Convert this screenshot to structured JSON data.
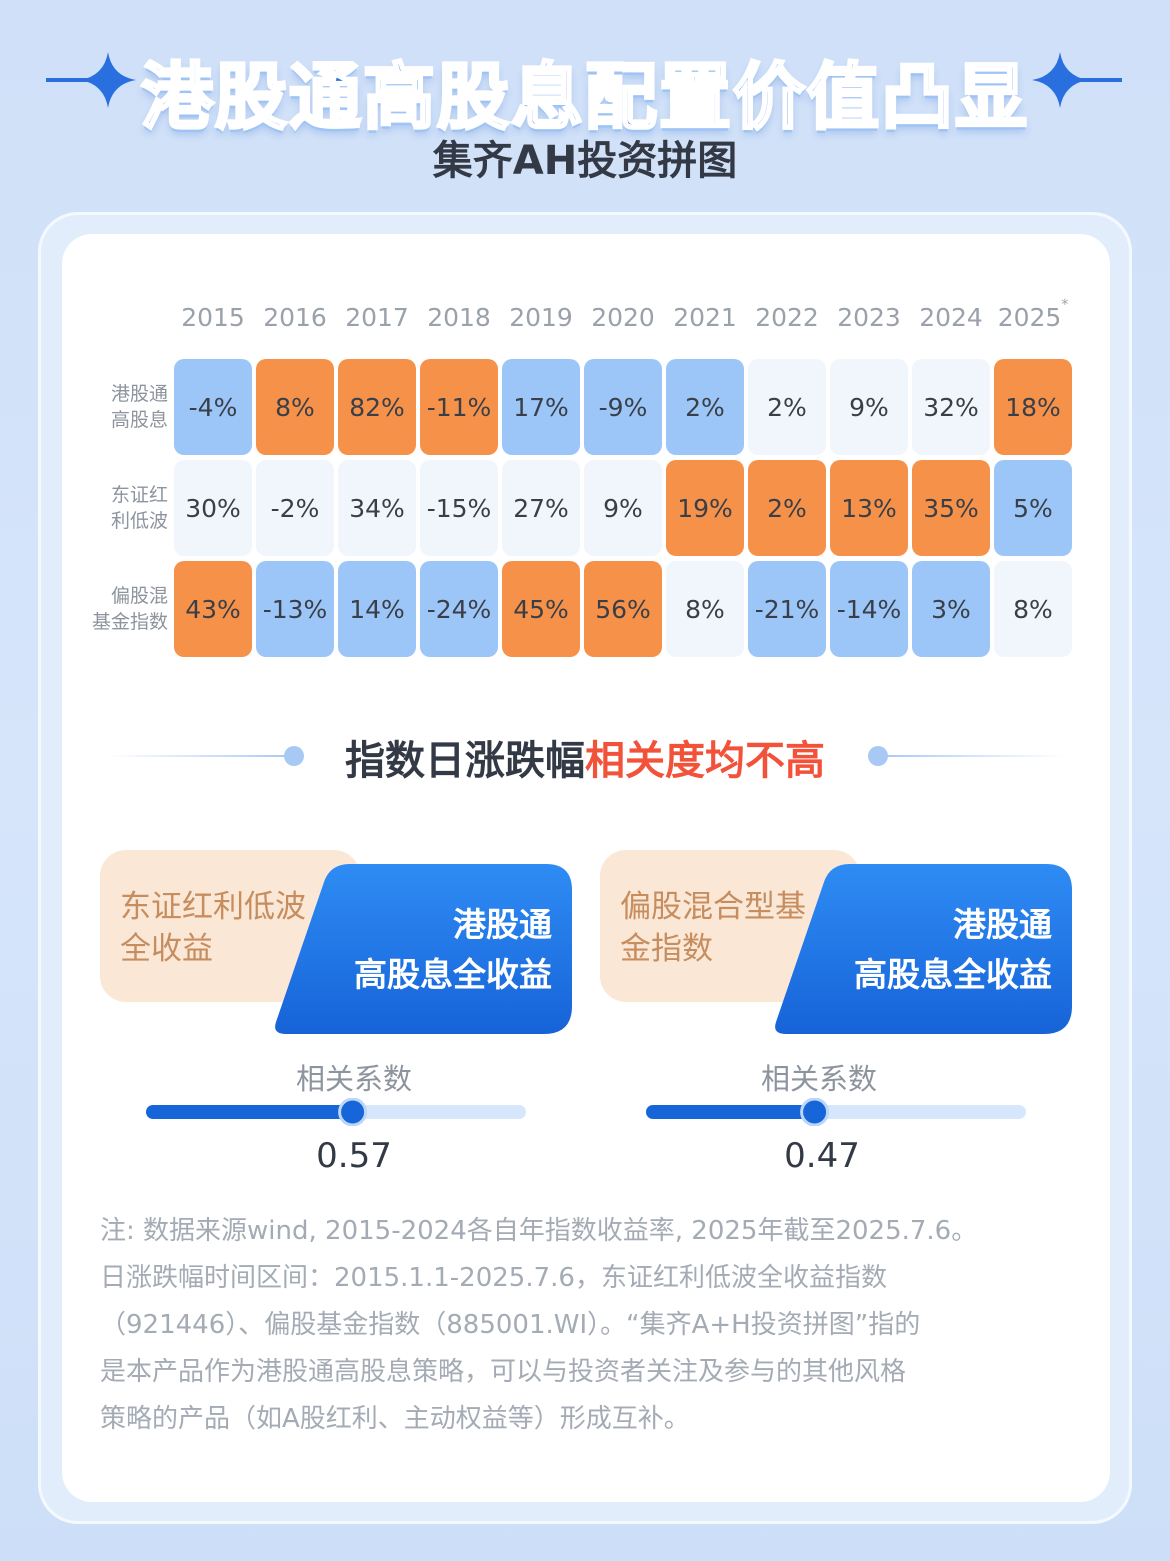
{
  "header": {
    "title": "港股通高股息配置价值凸显",
    "subtitle": "集齐AH投资拼图"
  },
  "chart_data": {
    "type": "table",
    "years": [
      "2015",
      "2016",
      "2017",
      "2018",
      "2019",
      "2020",
      "2021",
      "2022",
      "2023",
      "2024",
      "2025"
    ],
    "year_mark": "*",
    "rows": [
      {
        "label_lines": [
          "港股通",
          "高股息"
        ],
        "values": [
          "-4%",
          "8%",
          "82%",
          "-11%",
          "17%",
          "-9%",
          "2%",
          "2%",
          "9%",
          "32%",
          "18%"
        ],
        "highlight": [
          "blue",
          "orange",
          "orange",
          "orange",
          "blue",
          "blue",
          "blue",
          "plain",
          "plain",
          "plain",
          "orange"
        ]
      },
      {
        "label_lines": [
          "东证红",
          "利低波"
        ],
        "values": [
          "30%",
          "-2%",
          "34%",
          "-15%",
          "27%",
          "9%",
          "19%",
          "2%",
          "13%",
          "35%",
          "5%"
        ],
        "highlight": [
          "plain",
          "plain",
          "plain",
          "plain",
          "plain",
          "plain",
          "orange",
          "orange",
          "orange",
          "orange",
          "blue"
        ]
      },
      {
        "label_lines": [
          "偏股混",
          "基金指数"
        ],
        "values": [
          "43%",
          "-13%",
          "14%",
          "-24%",
          "45%",
          "56%",
          "8%",
          "-21%",
          "-14%",
          "3%",
          "8%"
        ],
        "highlight": [
          "orange",
          "blue",
          "blue",
          "blue",
          "orange",
          "orange",
          "plain",
          "blue",
          "blue",
          "blue",
          "plain"
        ]
      }
    ],
    "colors": {
      "orange": "#f6914a",
      "blue": "#9cc6f8",
      "plain": "#f1f6fd"
    }
  },
  "section": {
    "heading_prefix": "指数日涨跌幅",
    "heading_highlight": "相关度均不高"
  },
  "comparisons": [
    {
      "left_label_lines": [
        "东证红利低波",
        "全收益"
      ],
      "right_label_lines": [
        "港股通",
        "高股息全收益"
      ],
      "corr_label": "相关系数",
      "corr_value": 0.57,
      "corr_text": "0.57"
    },
    {
      "left_label_lines": [
        "偏股混合型基",
        "金指数"
      ],
      "right_label_lines": [
        "港股通",
        "高股息全收益"
      ],
      "corr_label": "相关系数",
      "corr_value": 0.47,
      "corr_text": "0.47"
    }
  ],
  "note": {
    "lines": [
      "注: 数据来源wind, 2015-2024各自年指数收益率, 2025年截至2025.7.6。",
      "日涨跌幅时间区间：2015.1.1-2025.7.6，东证红利低波全收益指数",
      "（921446）、偏股基金指数（885001.WI）。“集齐A+H投资拼图”指的",
      "是本产品作为港股通高股息策略，可以与投资者关注及参与的其他风格",
      "策略的产品（如A股红利、主动权益等）形成互补。"
    ]
  }
}
